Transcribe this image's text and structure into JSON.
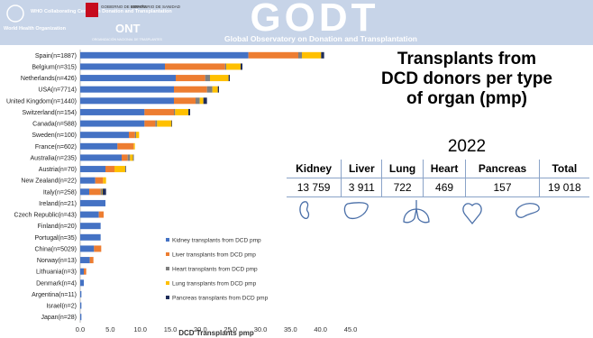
{
  "header": {
    "who_name": "World Health Organization",
    "who_centre": "WHO Collaborating Centre on Donation and Transplantation",
    "gov": "GOBIERNO DE ESPAÑA",
    "ministry": "MINISTERIO DE SANIDAD",
    "ont": "ONT",
    "ont_full": "ORGANIZACIÓN NACIONAL DE TRASPLANTES",
    "logo": "GODT",
    "observatory": "Global Observatory on Donation and Transplantation"
  },
  "chart_data": {
    "type": "bar",
    "orientation": "horizontal",
    "stacked": true,
    "title": "Transplants from DCD donors per type of organ (pmp)",
    "subtitle": "2022",
    "x_label": "DCD Transplants pmp",
    "categories": [
      "Spain(n=1887)",
      "Belgium(n=315)",
      "Netherlands(n=426)",
      "USA(n=7714)",
      "United Kingdom(n=1440)",
      "Switzerland(n=154)",
      "Canada(n=588)",
      "Sweden(n=100)",
      "France(n=602)",
      "Australia(n=235)",
      "Austria(n=70)",
      "New Zealand(n=22)",
      "Italy(n=258)",
      "Ireland(n=21)",
      "Czech Republic(n=43)",
      "Finland(n=20)",
      "Portugal(n=35)",
      "China(n=5029)",
      "Norway(n=13)",
      "Lithuania(n=3)",
      "Denmark(n=4)",
      "Argentina(n=11)",
      "Israel(n=2)",
      "Japan(n=28)"
    ],
    "series": [
      {
        "name": "Kidney transplants from DCD pmp",
        "color": "#4472c4",
        "values": [
          28.0,
          14.1,
          15.9,
          15.6,
          15.6,
          10.7,
          10.7,
          8.1,
          6.2,
          6.9,
          4.2,
          2.5,
          1.5,
          4.2,
          3.1,
          3.4,
          3.4,
          2.3,
          1.6,
          0.6,
          0.6,
          0.2,
          0.2,
          0.2
        ]
      },
      {
        "name": "Liver transplants from DCD pmp",
        "color": "#ed7d31",
        "values": [
          8.3,
          10.0,
          4.9,
          5.5,
          3.6,
          4.9,
          1.8,
          1.0,
          2.7,
          1.0,
          1.5,
          1.3,
          1.9,
          0,
          0.8,
          0,
          0,
          1.2,
          0.6,
          0.4,
          0,
          0,
          0,
          0
        ]
      },
      {
        "name": "Heart transplants from DCD pmp",
        "color": "#7f7f7f",
        "values": [
          0.6,
          0.2,
          0.8,
          0.9,
          0.7,
          0.2,
          0.3,
          0.2,
          0,
          0.4,
          0,
          0,
          0.2,
          0,
          0,
          0,
          0,
          0,
          0,
          0,
          0,
          0,
          0,
          0
        ]
      },
      {
        "name": "Lung transplants from DCD pmp",
        "color": "#ffc000",
        "values": [
          3.2,
          2.4,
          3.1,
          0.9,
          0.6,
          2.2,
          2.4,
          0.5,
          0.2,
          0.5,
          1.8,
          0.5,
          0.1,
          0,
          0,
          0,
          0,
          0,
          0,
          0,
          0,
          0,
          0,
          0
        ]
      },
      {
        "name": "Pancreas transplants from DCD pmp",
        "color": "#1f2d5a",
        "values": [
          0.5,
          0.3,
          0.2,
          0.2,
          0.6,
          0.3,
          0.1,
          0,
          0,
          0.1,
          0.1,
          0,
          0.6,
          0,
          0,
          0,
          0,
          0,
          0,
          0,
          0,
          0,
          0,
          0
        ]
      }
    ],
    "xlim": [
      0,
      45
    ],
    "xticks": [
      {
        "value": 0,
        "label": "0.0"
      },
      {
        "value": 5,
        "label": "5.0"
      },
      {
        "value": 10,
        "label": "10.0"
      },
      {
        "value": 15,
        "label": "15.0"
      },
      {
        "value": 20,
        "label": "20.0"
      },
      {
        "value": 25,
        "label": "25.0"
      },
      {
        "value": 30,
        "label": "30.0"
      },
      {
        "value": 35,
        "label": "35.0"
      },
      {
        "value": 40,
        "label": "40.0"
      },
      {
        "value": 45,
        "label": "45.0"
      }
    ],
    "grid": false,
    "legend": "inside-bottom"
  },
  "table": {
    "header": [
      "Kidney",
      "Liver",
      "Lung",
      "Heart",
      "Pancreas",
      "Total"
    ],
    "rows": [
      [
        "13 759",
        "3 911",
        "722",
        "469",
        "157",
        "19 018"
      ]
    ]
  }
}
